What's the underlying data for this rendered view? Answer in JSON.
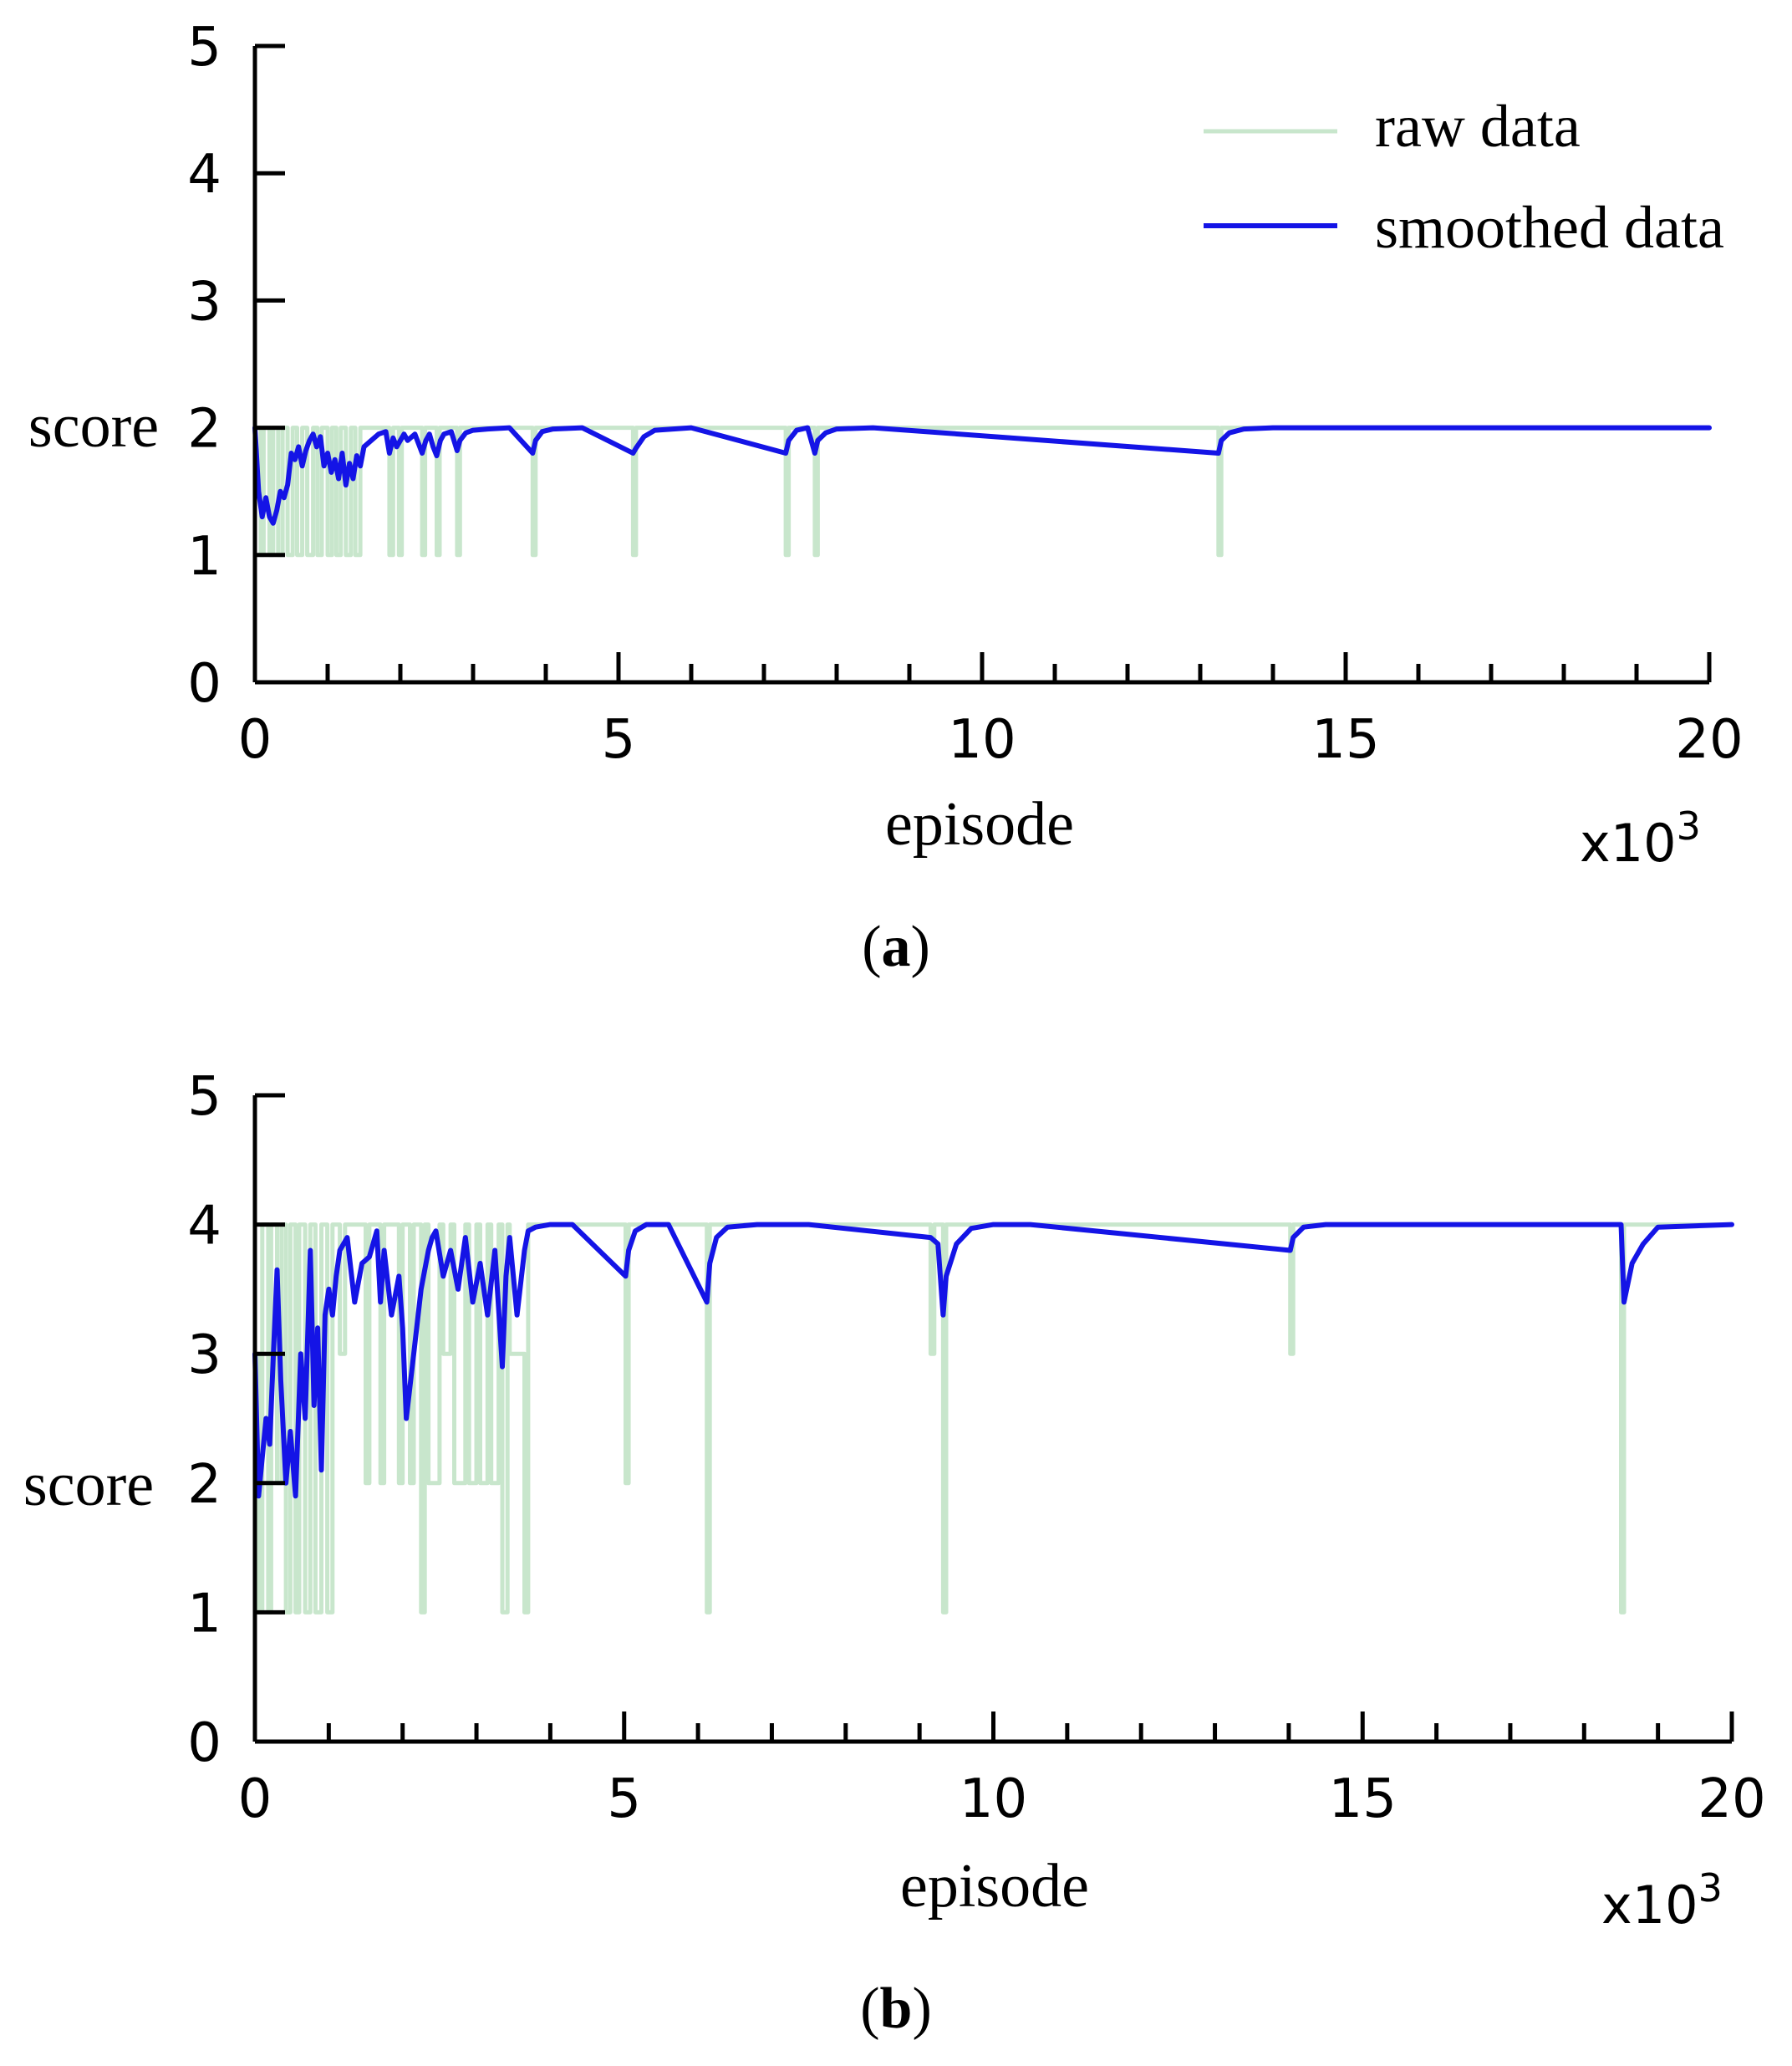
{
  "chart_data": [
    {
      "type": "line",
      "caption_letter": "a",
      "xlabel": "episode",
      "ylabel": "score",
      "x_scale_label": "x10",
      "x_scale_exponent": "3",
      "xlim": [
        0,
        20
      ],
      "ylim": [
        0,
        5
      ],
      "x_ticks": [
        "0",
        "5",
        "10",
        "15",
        "20"
      ],
      "y_ticks": [
        "0",
        "1",
        "2",
        "3",
        "4",
        "5"
      ],
      "legend": {
        "position": "top-right",
        "raw_label": "raw data",
        "smoothed_label": "smoothed data"
      },
      "colors": {
        "raw": "#c8e6cc",
        "smoothed": "#1414e6"
      },
      "series": [
        {
          "name": "raw data",
          "x": [
            0,
            0.08,
            0.08,
            0.12,
            0.12,
            0.2,
            0.2,
            0.25,
            0.25,
            0.32,
            0.32,
            0.38,
            0.38,
            0.45,
            0.45,
            0.52,
            0.52,
            0.58,
            0.58,
            0.65,
            0.65,
            0.72,
            0.72,
            0.8,
            0.8,
            0.86,
            0.86,
            0.92,
            0.92,
            1.0,
            1.0,
            1.06,
            1.06,
            1.12,
            1.12,
            1.18,
            1.18,
            1.25,
            1.25,
            1.32,
            1.32,
            1.38,
            1.38,
            1.45,
            1.45,
            1.85,
            1.85,
            1.9,
            1.9,
            1.98,
            1.98,
            2.02,
            2.02,
            2.3,
            2.3,
            2.34,
            2.34,
            2.5,
            2.5,
            2.54,
            2.54,
            2.78,
            2.78,
            2.82,
            2.82,
            3.82,
            3.82,
            3.86,
            3.86,
            5.2,
            5.2,
            5.24,
            5.24,
            7.3,
            7.3,
            7.34,
            7.34,
            7.7,
            7.7,
            7.74,
            7.74,
            13.25,
            13.25,
            13.29,
            13.29,
            20
          ],
          "y": [
            2,
            2,
            1,
            1,
            2,
            2,
            1,
            1,
            2,
            2,
            1,
            1,
            2,
            2,
            1,
            1,
            2,
            2,
            1,
            1,
            2,
            2,
            1,
            1,
            2,
            2,
            1,
            1,
            2,
            2,
            1,
            1,
            2,
            2,
            1,
            1,
            2,
            2,
            1,
            1,
            2,
            2,
            1,
            1,
            2,
            2,
            1,
            1,
            2,
            2,
            1,
            1,
            2,
            2,
            1,
            1,
            2,
            2,
            1,
            1,
            2,
            2,
            1,
            1,
            2,
            2,
            1,
            1,
            2,
            2,
            1,
            1,
            2,
            2,
            1,
            1,
            2,
            2,
            1,
            1,
            2,
            2,
            1,
            1,
            2,
            2
          ]
        },
        {
          "name": "smoothed data",
          "x": [
            0,
            0.05,
            0.1,
            0.15,
            0.2,
            0.25,
            0.3,
            0.35,
            0.4,
            0.45,
            0.5,
            0.55,
            0.6,
            0.65,
            0.7,
            0.75,
            0.8,
            0.85,
            0.9,
            0.95,
            1.0,
            1.05,
            1.1,
            1.15,
            1.2,
            1.25,
            1.3,
            1.35,
            1.4,
            1.45,
            1.5,
            1.6,
            1.7,
            1.8,
            1.85,
            1.9,
            1.95,
            2.0,
            2.05,
            2.1,
            2.2,
            2.3,
            2.35,
            2.4,
            2.45,
            2.5,
            2.55,
            2.6,
            2.7,
            2.78,
            2.82,
            2.9,
            3.0,
            3.2,
            3.5,
            3.82,
            3.86,
            3.95,
            4.1,
            4.5,
            5.2,
            5.24,
            5.35,
            5.5,
            6.0,
            7.3,
            7.34,
            7.45,
            7.6,
            7.7,
            7.74,
            7.85,
            8.0,
            8.5,
            13.25,
            13.29,
            13.4,
            13.6,
            14.0,
            20
          ],
          "y": [
            2.0,
            1.5,
            1.3,
            1.45,
            1.3,
            1.25,
            1.35,
            1.5,
            1.45,
            1.55,
            1.8,
            1.75,
            1.85,
            1.7,
            1.82,
            1.9,
            1.95,
            1.85,
            1.93,
            1.7,
            1.8,
            1.65,
            1.75,
            1.6,
            1.8,
            1.55,
            1.72,
            1.6,
            1.78,
            1.7,
            1.85,
            1.9,
            1.95,
            1.97,
            1.8,
            1.92,
            1.85,
            1.9,
            1.95,
            1.9,
            1.95,
            1.8,
            1.9,
            1.95,
            1.85,
            1.78,
            1.9,
            1.95,
            1.97,
            1.82,
            1.9,
            1.96,
            1.98,
            1.99,
            2.0,
            1.8,
            1.9,
            1.97,
            1.99,
            2.0,
            1.8,
            1.84,
            1.93,
            1.98,
            2.0,
            1.8,
            1.9,
            1.98,
            2.0,
            1.8,
            1.9,
            1.96,
            1.99,
            2.0,
            1.8,
            1.9,
            1.96,
            1.99,
            2.0,
            2.0
          ]
        }
      ]
    },
    {
      "type": "line",
      "caption_letter": "b",
      "xlabel": "episode",
      "ylabel": "score",
      "x_scale_label": "x10",
      "x_scale_exponent": "3",
      "xlim": [
        0,
        20
      ],
      "ylim": [
        0,
        5
      ],
      "x_ticks": [
        "0",
        "5",
        "10",
        "15",
        "20"
      ],
      "y_ticks": [
        "0",
        "1",
        "2",
        "3",
        "4",
        "5"
      ],
      "colors": {
        "raw": "#c8e6cc",
        "smoothed": "#1414e6"
      },
      "series": [
        {
          "name": "raw data",
          "x": [
            0,
            0.05,
            0.05,
            0.1,
            0.1,
            0.18,
            0.18,
            0.22,
            0.22,
            0.3,
            0.3,
            0.36,
            0.36,
            0.42,
            0.42,
            0.48,
            0.48,
            0.55,
            0.55,
            0.6,
            0.6,
            0.68,
            0.68,
            0.75,
            0.75,
            0.82,
            0.82,
            0.9,
            0.9,
            0.98,
            0.98,
            1.05,
            1.05,
            1.15,
            1.15,
            1.22,
            1.22,
            1.5,
            1.5,
            1.55,
            1.55,
            1.7,
            1.7,
            1.75,
            1.75,
            1.95,
            1.95,
            2.0,
            2.0,
            2.1,
            2.1,
            2.15,
            2.15,
            2.25,
            2.25,
            2.3,
            2.3,
            2.35,
            2.35,
            2.5,
            2.5,
            2.55,
            2.55,
            2.65,
            2.65,
            2.7,
            2.7,
            2.85,
            2.85,
            2.9,
            2.9,
            3.0,
            3.0,
            3.05,
            3.05,
            3.15,
            3.15,
            3.2,
            3.2,
            3.3,
            3.3,
            3.35,
            3.35,
            3.42,
            3.42,
            3.45,
            3.45,
            3.65,
            3.65,
            3.7,
            3.7,
            5.02,
            5.02,
            5.06,
            5.06,
            6.12,
            6.12,
            6.16,
            6.16,
            9.15,
            9.15,
            9.2,
            9.2,
            9.32,
            9.32,
            9.36,
            9.36,
            14.02,
            14.02,
            14.06,
            14.06,
            18.5,
            18.5,
            18.54,
            18.54,
            20
          ],
          "y": [
            3,
            3,
            1,
            1,
            4,
            4,
            1,
            1,
            4,
            4,
            2,
            2,
            4,
            4,
            1,
            1,
            4,
            4,
            1,
            1,
            4,
            4,
            1,
            1,
            4,
            4,
            1,
            1,
            4,
            4,
            1,
            1,
            4,
            4,
            3,
            3,
            4,
            4,
            2,
            2,
            4,
            4,
            2,
            2,
            4,
            4,
            2,
            2,
            4,
            4,
            2,
            2,
            4,
            4,
            1,
            1,
            4,
            4,
            2,
            2,
            4,
            4,
            3,
            3,
            4,
            4,
            2,
            2,
            4,
            4,
            2,
            2,
            4,
            4,
            2,
            2,
            4,
            4,
            2,
            2,
            4,
            4,
            1,
            1,
            4,
            4,
            3,
            3,
            1,
            1,
            4,
            4,
            2,
            2,
            4,
            4,
            1,
            1,
            4,
            4,
            3,
            3,
            4,
            4,
            1,
            1,
            4,
            4,
            3,
            3,
            4,
            4,
            1,
            1,
            4,
            4
          ]
        },
        {
          "name": "smoothed data",
          "x": [
            0,
            0.05,
            0.1,
            0.15,
            0.2,
            0.25,
            0.3,
            0.35,
            0.42,
            0.48,
            0.55,
            0.62,
            0.68,
            0.75,
            0.8,
            0.85,
            0.9,
            0.95,
            1.0,
            1.05,
            1.1,
            1.15,
            1.25,
            1.35,
            1.45,
            1.55,
            1.65,
            1.7,
            1.75,
            1.85,
            1.95,
            2.0,
            2.05,
            2.15,
            2.25,
            2.35,
            2.4,
            2.45,
            2.55,
            2.65,
            2.75,
            2.85,
            2.95,
            3.05,
            3.15,
            3.25,
            3.35,
            3.4,
            3.45,
            3.55,
            3.65,
            3.7,
            3.8,
            4.0,
            4.3,
            5.02,
            5.06,
            5.15,
            5.3,
            5.6,
            6.12,
            6.16,
            6.25,
            6.4,
            6.8,
            7.5,
            9.15,
            9.25,
            9.32,
            9.36,
            9.5,
            9.7,
            10.0,
            10.5,
            14.02,
            14.06,
            14.2,
            14.5,
            18.5,
            18.54,
            18.65,
            18.8,
            19.0,
            20
          ],
          "y": [
            3.0,
            1.9,
            2.2,
            2.5,
            2.3,
            3.0,
            3.65,
            2.8,
            2.0,
            2.4,
            1.9,
            3.0,
            2.5,
            3.8,
            2.6,
            3.2,
            2.1,
            3.3,
            3.5,
            3.3,
            3.6,
            3.8,
            3.9,
            3.4,
            3.7,
            3.75,
            3.95,
            3.4,
            3.8,
            3.3,
            3.6,
            3.2,
            2.5,
            3.0,
            3.5,
            3.8,
            3.9,
            3.95,
            3.6,
            3.8,
            3.5,
            3.9,
            3.4,
            3.7,
            3.3,
            3.8,
            2.9,
            3.6,
            3.9,
            3.3,
            3.8,
            3.95,
            3.98,
            4.0,
            4.0,
            3.6,
            3.8,
            3.95,
            4.0,
            4.0,
            3.4,
            3.7,
            3.9,
            3.98,
            4.0,
            4.0,
            3.9,
            3.85,
            3.3,
            3.6,
            3.85,
            3.97,
            4.0,
            4.0,
            3.8,
            3.9,
            3.98,
            4.0,
            4.0,
            3.4,
            3.7,
            3.85,
            3.98,
            4.0
          ]
        }
      ]
    }
  ]
}
